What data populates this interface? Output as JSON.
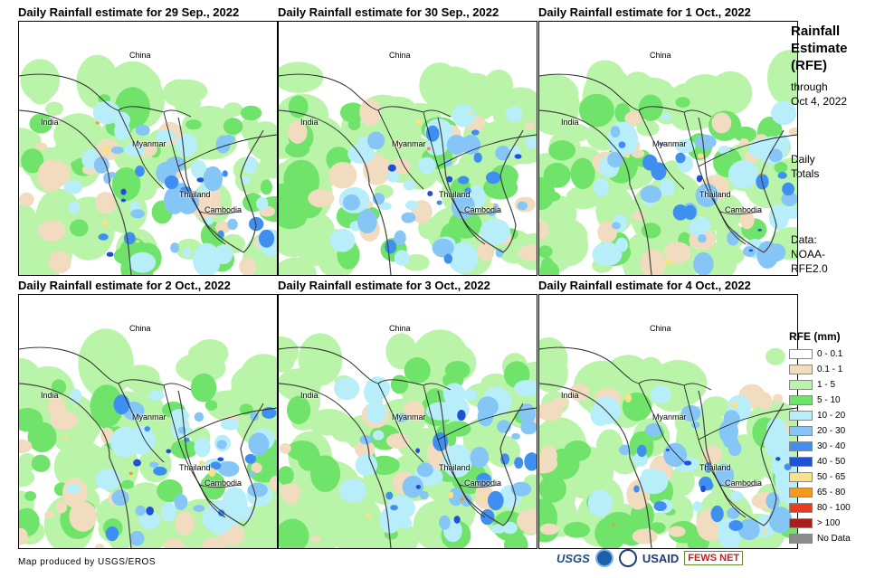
{
  "panels": [
    {
      "title": "Daily Rainfall estimate for 29 Sep., 2022"
    },
    {
      "title": "Daily Rainfall estimate for 30 Sep., 2022"
    },
    {
      "title": "Daily Rainfall estimate for 1 Oct., 2022"
    },
    {
      "title": "Daily Rainfall estimate for 2 Oct., 2022"
    },
    {
      "title": "Daily Rainfall estimate for 3 Oct., 2022"
    },
    {
      "title": "Daily Rainfall estimate for 4 Oct., 2022"
    }
  ],
  "labels": {
    "china": "China",
    "india": "India",
    "myanmar": "Myanmar",
    "thailand": "Thailand",
    "cambodia": "Cambodia"
  },
  "side": {
    "title_line1": "Rainfall",
    "title_line2": "Estimate",
    "title_line3": "(RFE)",
    "through_line1": "through",
    "through_line2": "Oct 4, 2022",
    "daily_line1": "Daily",
    "daily_line2": "Totals",
    "data_line1": "Data:",
    "data_line2": "NOAA-",
    "data_line3": "RFE2.0"
  },
  "legend": {
    "title": "RFE (mm)",
    "items": [
      {
        "label": "0 - 0.1",
        "color": "#ffffff"
      },
      {
        "label": "0.1 - 1",
        "color": "#f2dcc0"
      },
      {
        "label": "1 - 5",
        "color": "#b9f4a8"
      },
      {
        "label": "5 - 10",
        "color": "#6fe36a"
      },
      {
        "label": "10 - 20",
        "color": "#b8eefa"
      },
      {
        "label": "20 - 30",
        "color": "#86c6f7"
      },
      {
        "label": "30 - 40",
        "color": "#3f8ff0"
      },
      {
        "label": "40 - 50",
        "color": "#1f50d8"
      },
      {
        "label": "50 - 65",
        "color": "#f9e08a"
      },
      {
        "label": "65 - 80",
        "color": "#f59a1c"
      },
      {
        "label": "80 - 100",
        "color": "#ea3b1e"
      },
      {
        "label": "> 100",
        "color": "#a61e1e"
      },
      {
        "label": "No Data",
        "color": "#8c8c8c"
      }
    ]
  },
  "footer": {
    "credit": "Map produced by USGS/EROS",
    "usgs": "USGS",
    "usaid": "USAID",
    "fews": "FEWS NET"
  }
}
